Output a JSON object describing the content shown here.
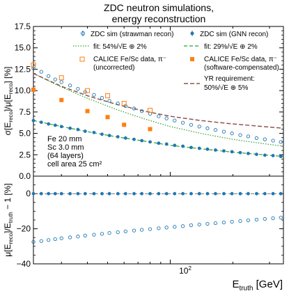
{
  "chart_data": [
    {
      "type": "scatter",
      "title_lines": [
        "ZDC neutron simulations,",
        "energy reconstruction"
      ],
      "ylabel_parts": {
        "sigma": "σ[E",
        "reco1": "reco",
        "mid": "]/μ[E",
        "reco2": "reco",
        "unit": "] [%]"
      },
      "ylim": [
        0,
        17.5
      ],
      "yticks": [
        "0.0",
        "2.5",
        "5.0",
        "7.5",
        "10.0",
        "12.5",
        "15.0",
        "17.5"
      ],
      "x_scale": "log",
      "xlim": [
        22,
        350
      ],
      "grid": false,
      "legend_placement": "top-right",
      "legend": {
        "strawman": "ZDC sim (strawman recon)",
        "gnn": "ZDC sim (GNN recon)",
        "fit_strawman": "fit: 54%/√E ⊕ 2%",
        "fit_gnn": "fit: 29%/√E ⊕ 2%",
        "calice_unc_1": "CALICE Fe/Sc data, π⁻",
        "calice_unc_2": "(uncorrected)",
        "calice_comp_1": "CALICE Fe/Sc data, π⁻",
        "calice_comp_2": "(software-compensated)",
        "yr_1": "YR requirement:",
        "yr_2": "50%/√E ⊕ 5%"
      },
      "annotation_lines": [
        "Fe 20 mm",
        "Sc 3.0 mm",
        "(64 layers)",
        "cell area 25 cm²"
      ],
      "series": [
        {
          "name": "ZDC sim (strawman recon)",
          "marker": "open-circle",
          "color": "#1f77b4",
          "x": [
            22,
            24,
            26,
            28,
            30,
            33,
            36,
            39,
            43,
            47,
            51,
            56,
            61,
            67,
            73,
            80,
            88,
            96,
            105,
            115,
            126,
            138,
            151,
            165,
            181,
            198,
            217,
            237,
            260,
            285,
            312,
            340
          ],
          "y": [
            12.6,
            12.2,
            11.7,
            11.3,
            11.0,
            10.6,
            10.2,
            9.85,
            9.5,
            9.15,
            8.8,
            8.5,
            8.2,
            7.9,
            7.6,
            7.3,
            7.0,
            6.75,
            6.5,
            6.25,
            6.0,
            5.8,
            5.6,
            5.4,
            5.2,
            5.0,
            4.8,
            4.65,
            4.45,
            4.3,
            4.15,
            4.0
          ]
        },
        {
          "name": "ZDC sim (GNN recon)",
          "marker": "filled-circle",
          "color": "#1f77b4",
          "x": [
            22,
            24,
            26,
            28,
            30,
            33,
            36,
            39,
            43,
            47,
            51,
            56,
            61,
            67,
            73,
            80,
            88,
            96,
            105,
            115,
            126,
            138,
            151,
            165,
            181,
            198,
            217,
            237,
            260,
            285,
            312,
            340
          ],
          "y": [
            6.5,
            6.3,
            6.1,
            5.95,
            5.8,
            5.6,
            5.45,
            5.25,
            5.1,
            4.9,
            4.75,
            4.6,
            4.45,
            4.3,
            4.15,
            4.0,
            3.85,
            3.75,
            3.6,
            3.5,
            3.35,
            3.25,
            3.15,
            3.05,
            2.95,
            2.85,
            2.75,
            2.65,
            2.55,
            2.45,
            2.4,
            2.3
          ]
        },
        {
          "name": "fit: 54%/√E ⊕ 2%",
          "line": "dotted",
          "color": "#2ca02c",
          "x": [
            22,
            30,
            40,
            55,
            75,
            100,
            140,
            200,
            280,
            350
          ],
          "y": [
            12.0,
            10.4,
            9.1,
            7.8,
            6.7,
            5.8,
            5.0,
            4.3,
            3.8,
            3.5
          ]
        },
        {
          "name": "fit: 29%/√E ⊕ 2%",
          "line": "dashed",
          "color": "#2ca02c",
          "x": [
            22,
            30,
            40,
            55,
            75,
            100,
            140,
            200,
            280,
            350
          ],
          "y": [
            6.5,
            5.8,
            5.2,
            4.6,
            4.1,
            3.6,
            3.2,
            2.8,
            2.5,
            2.3
          ]
        },
        {
          "name": "CALICE Fe/Sc data, π⁻ (uncorrected)",
          "marker": "open-square",
          "color": "#ff7f0e",
          "x": [
            22,
            30,
            40,
            50,
            60,
            80
          ],
          "y": [
            13.0,
            11.5,
            10.0,
            9.4,
            8.5,
            7.7
          ]
        },
        {
          "name": "CALICE Fe/Sc data, π⁻ (software-compensated)",
          "marker": "filled-square",
          "color": "#ff7f0e",
          "x": [
            22,
            30,
            40,
            50,
            60,
            80
          ],
          "y": [
            10.1,
            8.9,
            7.6,
            6.9,
            6.0,
            5.5
          ]
        },
        {
          "name": "YR requirement: 50%/√E ⊕ 5%",
          "line": "dashed",
          "color": "#8c564b",
          "x": [
            22,
            30,
            40,
            55,
            75,
            100,
            140,
            200,
            280,
            350
          ],
          "y": [
            12.0,
            10.5,
            9.4,
            8.4,
            7.6,
            7.0,
            6.5,
            6.1,
            5.8,
            5.6
          ]
        }
      ]
    },
    {
      "type": "scatter",
      "ylabel_parts": {
        "mu": "μ[E",
        "reco": "reco",
        "mid": "]/E",
        "truth": "truth",
        "tail": " − 1 [%]"
      },
      "ylim": [
        -40,
        10
      ],
      "yticks": [
        "0",
        "−20",
        "−40"
      ],
      "x_scale": "log",
      "xlim": [
        22,
        350
      ],
      "xtick_label": "10",
      "xtick_exp": "2",
      "xlabel_parts": {
        "e": "E",
        "truth": "truth",
        "unit": " [GeV]"
      },
      "series": [
        {
          "name": "ZDC sim (strawman recon)",
          "marker": "open-circle",
          "color": "#1f77b4",
          "x": [
            22,
            24,
            26,
            28,
            30,
            33,
            36,
            39,
            43,
            47,
            51,
            56,
            61,
            67,
            73,
            80,
            88,
            96,
            105,
            115,
            126,
            138,
            151,
            165,
            181,
            198,
            217,
            237,
            260,
            285,
            312,
            340
          ],
          "y": [
            -27.5,
            -27.0,
            -26.4,
            -25.9,
            -25.4,
            -24.9,
            -24.4,
            -23.9,
            -23.4,
            -22.9,
            -22.4,
            -22.0,
            -21.5,
            -21.0,
            -20.6,
            -20.2,
            -19.7,
            -19.3,
            -18.9,
            -18.5,
            -18.0,
            -17.6,
            -17.2,
            -16.8,
            -16.4,
            -16.0,
            -15.6,
            -15.2,
            -14.8,
            -14.4,
            -14.0,
            -13.6
          ]
        },
        {
          "name": "ZDC sim (GNN recon)",
          "marker": "filled-circle",
          "color": "#1f77b4",
          "x": [
            22,
            24,
            26,
            28,
            30,
            33,
            36,
            39,
            43,
            47,
            51,
            56,
            61,
            67,
            73,
            80,
            88,
            96,
            105,
            115,
            126,
            138,
            151,
            165,
            181,
            198,
            217,
            237,
            260,
            285,
            312,
            340
          ],
          "y": [
            0,
            0,
            0,
            0,
            0,
            0,
            0,
            0,
            0,
            0,
            0,
            0,
            0,
            0,
            0,
            0,
            0,
            0,
            0,
            0,
            0,
            0,
            0,
            0,
            0,
            0,
            0,
            0,
            0,
            0,
            0,
            0
          ]
        }
      ]
    }
  ]
}
